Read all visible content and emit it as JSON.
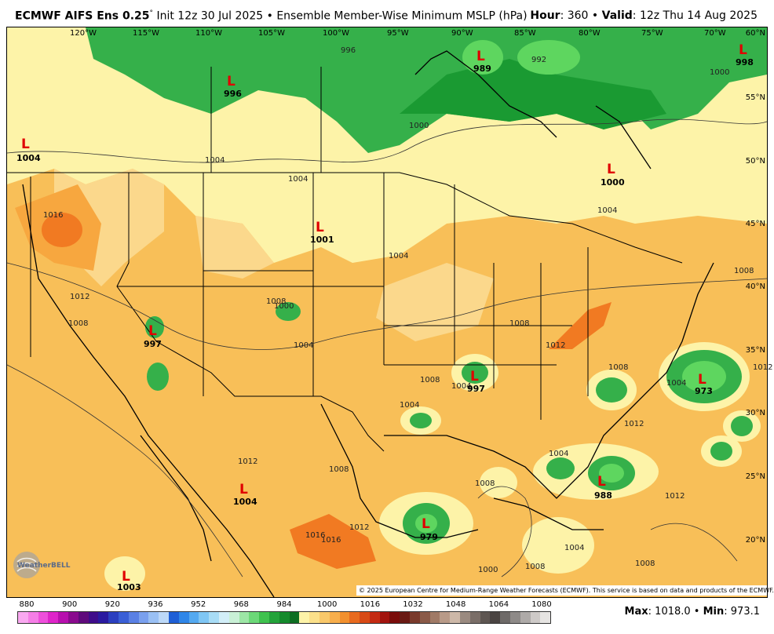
{
  "header": {
    "model": "ECMWF AIFS Ens 0.25",
    "degree": "°",
    "init": "Init 12z 30 Jul 2025",
    "separator": "•",
    "product": "Ensemble Member-Wise Minimum MSLP (hPa)",
    "hour_label": "Hour",
    "hour_value": ": 360 •",
    "valid_label": "Valid",
    "valid_value": ": 12z Thu 14 Aug 2025"
  },
  "map": {
    "longitudes": [
      "120°W",
      "115°W",
      "110°W",
      "105°W",
      "100°W",
      "95°W",
      "90°W",
      "85°W",
      "80°W",
      "75°W",
      "70°W"
    ],
    "latitudes": [
      "60°N",
      "55°N",
      "50°N",
      "45°N",
      "40°N",
      "35°N",
      "30°N",
      "25°N",
      "20°N"
    ],
    "lows": [
      {
        "label": "L",
        "value": "996"
      },
      {
        "label": "L",
        "value": "989"
      },
      {
        "label": "L",
        "value": "998"
      },
      {
        "label": "L",
        "value": "1004"
      },
      {
        "label": "L",
        "value": "1000"
      },
      {
        "label": "L",
        "value": "1001"
      },
      {
        "label": "L",
        "value": "997"
      },
      {
        "label": "L",
        "value": "997"
      },
      {
        "label": "L",
        "value": "973"
      },
      {
        "label": "L",
        "value": "1004"
      },
      {
        "label": "L",
        "value": "988"
      },
      {
        "label": "L",
        "value": "979"
      },
      {
        "label": "L",
        "value": "1003"
      }
    ],
    "isobar_labels": [
      "996",
      "992",
      "1000",
      "1000",
      "1004",
      "1004",
      "1004",
      "1016",
      "1012",
      "1008",
      "1000",
      "1004",
      "1008",
      "1004",
      "1008",
      "1012",
      "1008",
      "1004",
      "1008",
      "1012",
      "1008",
      "1012",
      "1004",
      "1012",
      "1016",
      "1008",
      "1004",
      "1008",
      "1008",
      "1004",
      "1000",
      "1016",
      "1012",
      "1004",
      "1008",
      "1012"
    ],
    "colors": {
      "ocean_land_base": "#f8bf58",
      "deep_green": "#1a9a32",
      "mid_green": "#35b04a",
      "light_green": "#5ed65f",
      "pale_yellow": "#fdf3a8",
      "light_orange": "#fbd88c",
      "orange": "#f7a73f",
      "dark_orange": "#f17a22"
    }
  },
  "copyright": "© 2025 European Centre for Medium-Range Weather Forecasts (ECMWF). This service is based on data and products of the ECMWF.",
  "logo": {
    "text": "WeatherBELL"
  },
  "colorbar": {
    "ticks": [
      "880",
      "900",
      "920",
      "936",
      "952",
      "968",
      "984",
      "1000",
      "1016",
      "1032",
      "1048",
      "1064",
      "1080"
    ],
    "colors": [
      "#f9a8f0",
      "#f57ee6",
      "#ee4fdb",
      "#de24c9",
      "#b70fae",
      "#8a0a8e",
      "#5f0a7c",
      "#3f0c8a",
      "#2a1aa0",
      "#2b3fbf",
      "#3a5fd6",
      "#5a80e4",
      "#7aa0ee",
      "#9ac0f4",
      "#bcd8f8",
      "#1f5fd6",
      "#2f86e8",
      "#54a9f0",
      "#7fc6f4",
      "#a8dcf6",
      "#d2eef8",
      "#c9f0d6",
      "#9de6a6",
      "#6cd878",
      "#3fc24e",
      "#23a33a",
      "#148a2c",
      "#0d6e22",
      "#fdf3a8",
      "#fbe08a",
      "#f9c86a",
      "#f7ae4c",
      "#f2902e",
      "#e86a1e",
      "#d84a16",
      "#c42a12",
      "#a2140e",
      "#7a0c0a",
      "#6a1a14",
      "#7a3a2c",
      "#8a5a48",
      "#a07a66",
      "#b89a88",
      "#cdb8a8",
      "#9a8a80",
      "#7a6e68",
      "#5e5652",
      "#4a4442",
      "#6e6a68",
      "#8e8a88",
      "#aeaaa8",
      "#cecac8",
      "#e6e4e2"
    ]
  },
  "stats": {
    "max_label": "Max",
    "max_value": ": 1018.0 •",
    "min_label": "Min",
    "min_value": ": 973.1"
  }
}
